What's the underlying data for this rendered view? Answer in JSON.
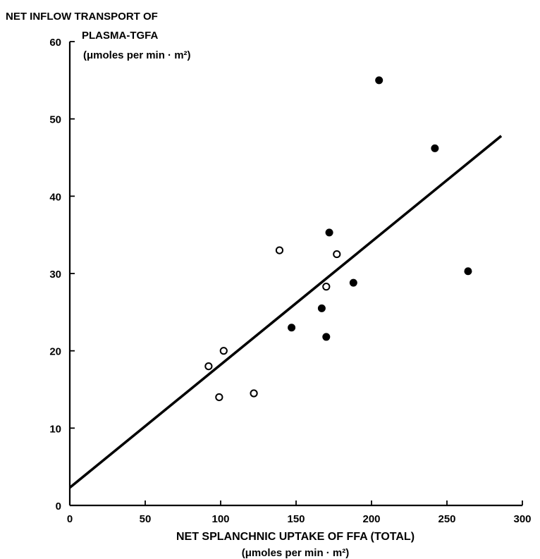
{
  "chart_data": {
    "type": "scatter",
    "title": "",
    "ylabel_lines": [
      "NET INFLOW TRANSPORT OF",
      "PLASMA-TGFA",
      "(μmoles per min · m²)"
    ],
    "xlabel_lines": [
      "NET SPLANCHNIC UPTAKE OF FFA (TOTAL)",
      "(μmoles per min · m²)"
    ],
    "xlim": [
      0,
      300
    ],
    "ylim": [
      0,
      60
    ],
    "x_ticks": [
      0,
      50,
      100,
      150,
      200,
      250,
      300
    ],
    "y_ticks": [
      0,
      10,
      20,
      30,
      40,
      50,
      60
    ],
    "grid": false,
    "series": [
      {
        "marker": "open-circle",
        "points": [
          {
            "x": 92,
            "y": 18
          },
          {
            "x": 99,
            "y": 14
          },
          {
            "x": 102,
            "y": 20
          },
          {
            "x": 122,
            "y": 14.5
          },
          {
            "x": 139,
            "y": 33
          },
          {
            "x": 170,
            "y": 28.3
          },
          {
            "x": 177,
            "y": 32.5
          }
        ]
      },
      {
        "marker": "filled-circle",
        "points": [
          {
            "x": 147,
            "y": 23
          },
          {
            "x": 167,
            "y": 25.5
          },
          {
            "x": 170,
            "y": 21.8
          },
          {
            "x": 172,
            "y": 35.3
          },
          {
            "x": 188,
            "y": 28.8
          },
          {
            "x": 205,
            "y": 55
          },
          {
            "x": 242,
            "y": 46.2
          },
          {
            "x": 264,
            "y": 30.3
          }
        ]
      }
    ],
    "regression_line": {
      "x": [
        0,
        286
      ],
      "y": [
        2.3,
        47.8
      ]
    }
  }
}
